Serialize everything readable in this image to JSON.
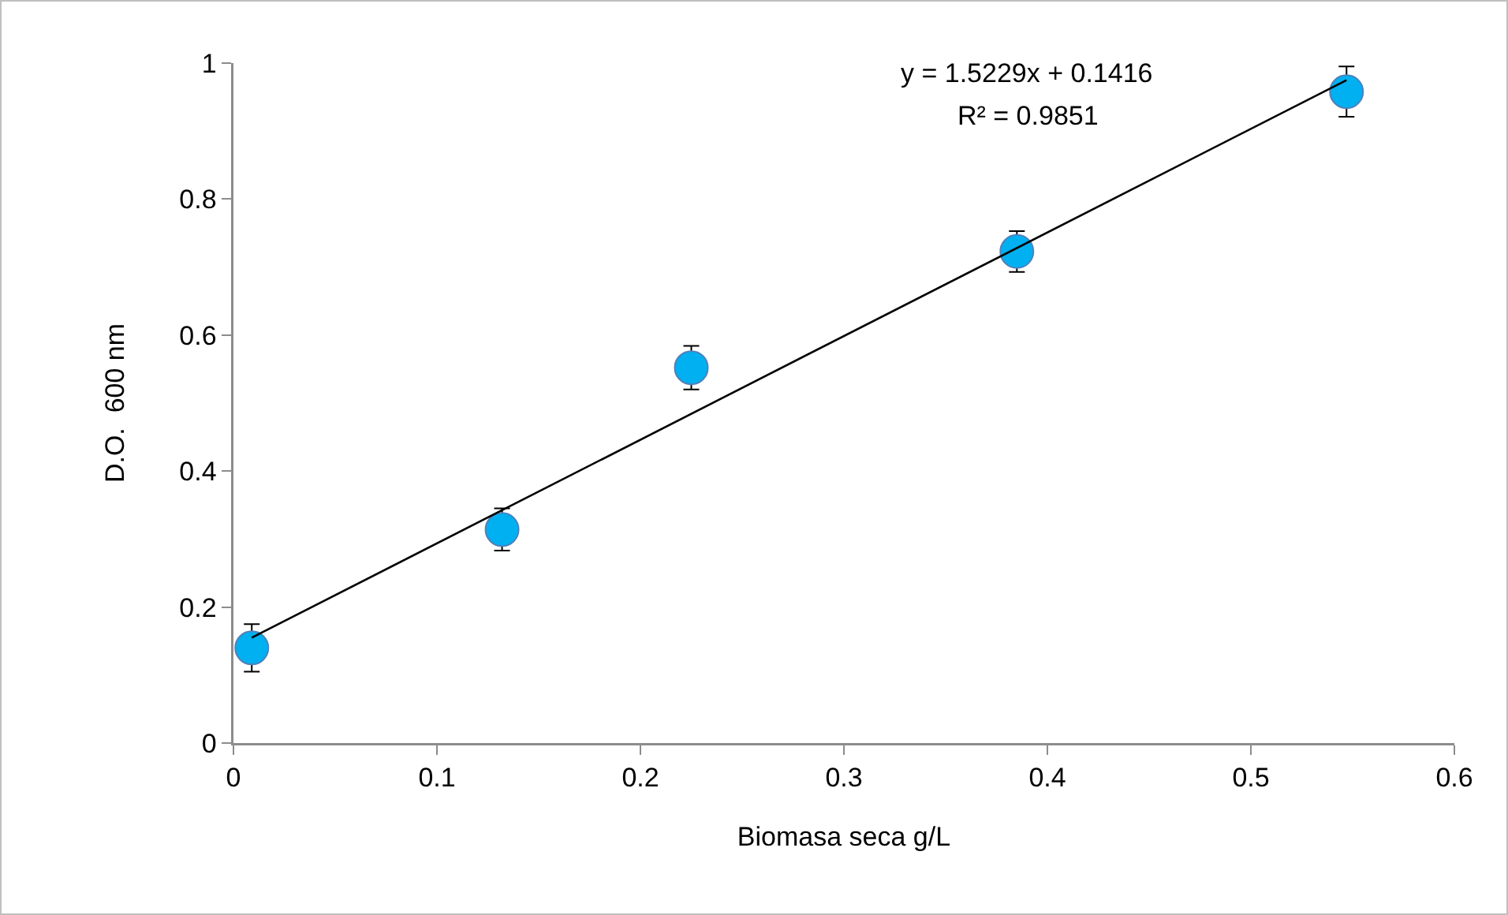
{
  "chart_data": {
    "type": "scatter",
    "xlabel": "Biomasa seca g/L",
    "ylabel": "D.O.  600 nm",
    "x": [
      0.009,
      0.132,
      0.225,
      0.385,
      0.547
    ],
    "series": [
      {
        "color": "#00b0f0",
        "values": [
          0.14,
          0.314,
          0.552,
          0.723,
          0.958
        ],
        "errors": [
          0.035,
          0.031,
          0.032,
          0.03,
          0.037
        ]
      },
      {
        "type": "line",
        "marker": "none",
        "color": "#000000",
        "x": [
          0.009,
          0.547
        ],
        "values": [
          0.155,
          0.975
        ]
      }
    ],
    "xlim": [
      0,
      0.6
    ],
    "xticks": [
      0,
      0.1,
      0.2,
      0.3,
      0.4,
      0.5,
      0.6
    ],
    "ylim": [
      0,
      1
    ],
    "yticks": [
      0,
      0.2,
      0.4,
      0.6,
      0.8,
      1
    ],
    "annotations": [
      "y = 1.5229x + 0.1416",
      "R² = 0.9851"
    ],
    "grid": false,
    "marker": "circle",
    "line_style": "solid"
  }
}
